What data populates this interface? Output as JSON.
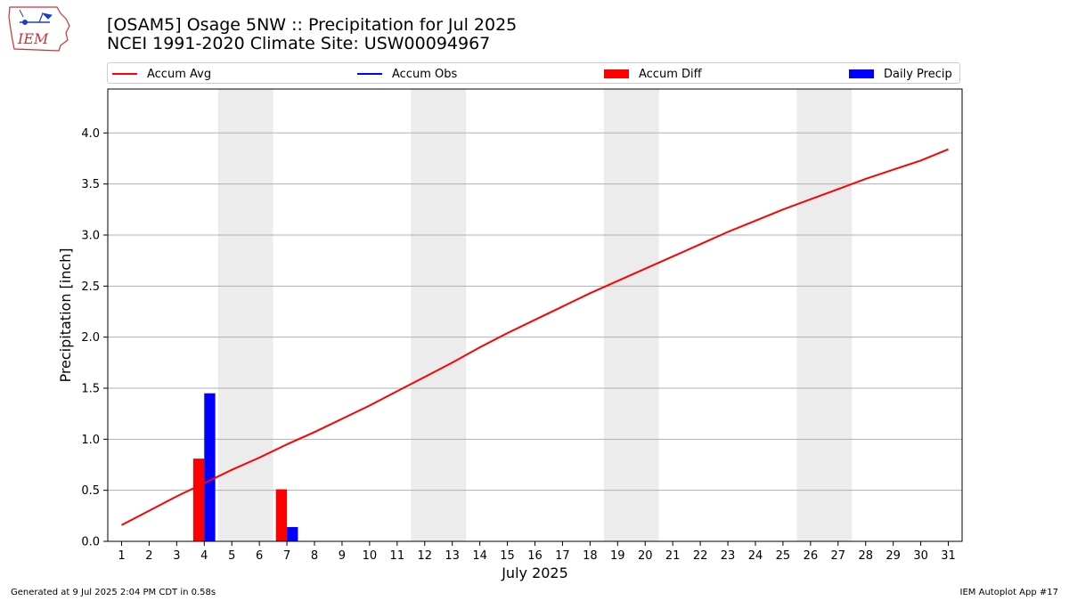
{
  "logo": {
    "text": "IEM",
    "icon": "iem-iowa-logo"
  },
  "title_line1": "[OSAM5] Osage 5NW :: Precipitation for Jul 2025",
  "title_line2": "NCEI 1991-2020 Climate Site: USW00094967",
  "legend": [
    {
      "label": "Accum Avg",
      "kind": "line",
      "color": "#ff0000"
    },
    {
      "label": "Accum Obs",
      "kind": "line",
      "color": "#0000ff"
    },
    {
      "label": "Accum Diff",
      "kind": "patch",
      "color": "#ff0000"
    },
    {
      "label": "Daily Precip",
      "kind": "patch",
      "color": "#0000ff"
    }
  ],
  "footer_left": "Generated at 9 Jul 2025 2:04 PM CDT in 0.58s",
  "footer_right": "IEM Autoplot App #17",
  "chart_data": {
    "type": "bar",
    "xlabel": "July 2025",
    "ylabel": "Precipitation [inch]",
    "x": [
      1,
      2,
      3,
      4,
      5,
      6,
      7,
      8,
      9,
      10,
      11,
      12,
      13,
      14,
      15,
      16,
      17,
      18,
      19,
      20,
      21,
      22,
      23,
      24,
      25,
      26,
      27,
      28,
      29,
      30,
      31
    ],
    "xlim": [
      0.5,
      31.5
    ],
    "ylim": [
      0,
      4.43
    ],
    "yticks": [
      0.0,
      0.5,
      1.0,
      1.5,
      2.0,
      2.5,
      3.0,
      3.5,
      4.0
    ],
    "ytick_labels": [
      "0.0",
      "0.5",
      "1.0",
      "1.5",
      "2.0",
      "2.5",
      "3.0",
      "3.5",
      "4.0"
    ],
    "grid": "horizontal",
    "weekend_shading": [
      [
        4.5,
        6.5
      ],
      [
        11.5,
        13.5
      ],
      [
        18.5,
        20.5
      ],
      [
        25.5,
        27.5
      ]
    ],
    "weekend_color": "#ececec",
    "series": [
      {
        "name": "Accum Avg",
        "kind": "line",
        "color": "#ff0000",
        "values": [
          0.16,
          0.3,
          0.44,
          0.57,
          0.7,
          0.82,
          0.95,
          1.07,
          1.2,
          1.33,
          1.47,
          1.61,
          1.75,
          1.9,
          2.04,
          2.17,
          2.3,
          2.43,
          2.55,
          2.67,
          2.79,
          2.91,
          3.03,
          3.14,
          3.25,
          3.35,
          3.45,
          3.55,
          3.64,
          3.73,
          3.84
        ]
      },
      {
        "name": "Accum Diff",
        "kind": "bar",
        "color": "#ff0000",
        "points": [
          {
            "x": 4,
            "value": 0.81
          },
          {
            "x": 7,
            "value": 0.51
          }
        ]
      },
      {
        "name": "Daily Precip",
        "kind": "bar",
        "color": "#0000ff",
        "points": [
          {
            "x": 4,
            "value": 1.45
          },
          {
            "x": 7,
            "value": 0.14
          }
        ]
      }
    ]
  }
}
